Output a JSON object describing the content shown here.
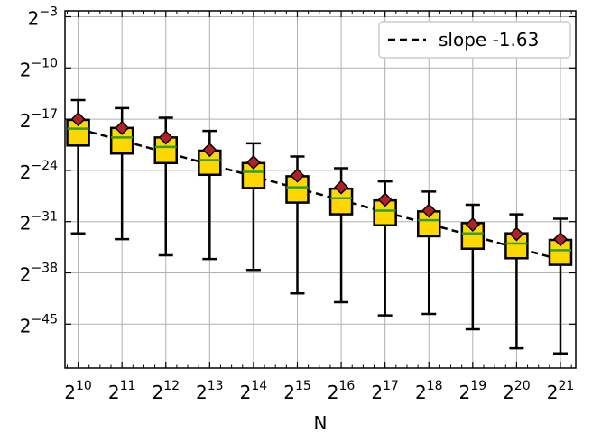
{
  "chart_data": {
    "type": "box",
    "xlabel": "N",
    "ylabel": "",
    "x_scale": "log2",
    "y_scale": "log2",
    "x_ticks": [
      {
        "base": "2",
        "exp": "10"
      },
      {
        "base": "2",
        "exp": "11"
      },
      {
        "base": "2",
        "exp": "12"
      },
      {
        "base": "2",
        "exp": "13"
      },
      {
        "base": "2",
        "exp": "14"
      },
      {
        "base": "2",
        "exp": "15"
      },
      {
        "base": "2",
        "exp": "16"
      },
      {
        "base": "2",
        "exp": "17"
      },
      {
        "base": "2",
        "exp": "18"
      },
      {
        "base": "2",
        "exp": "19"
      },
      {
        "base": "2",
        "exp": "20"
      },
      {
        "base": "2",
        "exp": "21"
      }
    ],
    "y_ticks": [
      {
        "base": "2",
        "exp": "−3"
      },
      {
        "base": "2",
        "exp": "−10"
      },
      {
        "base": "2",
        "exp": "−17"
      },
      {
        "base": "2",
        "exp": "−24"
      },
      {
        "base": "2",
        "exp": "−31"
      },
      {
        "base": "2",
        "exp": "−38"
      },
      {
        "base": "2",
        "exp": "−45"
      }
    ],
    "x_tick_values": [
      10,
      11,
      12,
      13,
      14,
      15,
      16,
      17,
      18,
      19,
      20,
      21
    ],
    "y_tick_values": [
      -3,
      -10,
      -17,
      -24,
      -31,
      -38,
      -45
    ],
    "xlim_log2": [
      9.7,
      21.35
    ],
    "ylim_log2": [
      -51.0,
      -2.2
    ],
    "grid": true,
    "legend_position": "top-right",
    "boxes": [
      {
        "x_log2": 10,
        "whisker_low": -32.6,
        "q1": -20.6,
        "median": -18.3,
        "q3": -17.1,
        "whisker_high": -14.4,
        "mean": -17.0
      },
      {
        "x_log2": 11,
        "whisker_low": -33.4,
        "q1": -21.7,
        "median": -19.5,
        "q3": -18.2,
        "whisker_high": -15.5,
        "mean": -18.2
      },
      {
        "x_log2": 12,
        "whisker_low": -35.6,
        "q1": -23.0,
        "median": -20.8,
        "q3": -19.5,
        "whisker_high": -16.8,
        "mean": -19.5
      },
      {
        "x_log2": 13,
        "whisker_low": -36.1,
        "q1": -24.6,
        "median": -22.6,
        "q3": -21.3,
        "whisker_high": -18.6,
        "mean": -21.2
      },
      {
        "x_log2": 14,
        "whisker_low": -37.6,
        "q1": -26.4,
        "median": -24.2,
        "q3": -23.0,
        "whisker_high": -20.3,
        "mean": -22.9
      },
      {
        "x_log2": 15,
        "whisker_low": -40.8,
        "q1": -28.4,
        "median": -26.3,
        "q3": -24.8,
        "whisker_high": -22.1,
        "mean": -24.7
      },
      {
        "x_log2": 16,
        "whisker_low": -42.0,
        "q1": -30.0,
        "median": -27.8,
        "q3": -26.5,
        "whisker_high": -23.7,
        "mean": -26.3
      },
      {
        "x_log2": 17,
        "whisker_low": -43.8,
        "q1": -31.5,
        "median": -29.5,
        "q3": -28.1,
        "whisker_high": -25.5,
        "mean": -28.0
      },
      {
        "x_log2": 18,
        "whisker_low": -43.6,
        "q1": -33.0,
        "median": -30.8,
        "q3": -29.6,
        "whisker_high": -26.9,
        "mean": -29.5
      },
      {
        "x_log2": 19,
        "whisker_low": -45.7,
        "q1": -34.7,
        "median": -32.6,
        "q3": -31.2,
        "whisker_high": -28.7,
        "mean": -31.4
      },
      {
        "x_log2": 20,
        "whisker_low": -48.3,
        "q1": -36.0,
        "median": -34.0,
        "q3": -32.6,
        "whisker_high": -30.0,
        "mean": -32.7
      },
      {
        "x_log2": 21,
        "whisker_low": -49.0,
        "q1": -36.9,
        "median": -34.9,
        "q3": -33.5,
        "whisker_high": -30.6,
        "mean": -33.4
      }
    ],
    "fit_line": {
      "label": "slope -1.63",
      "style": "dashed",
      "color": "#000000",
      "points": [
        [
          10,
          -18.3
        ],
        [
          21,
          -36.2
        ]
      ]
    },
    "colors": {
      "box_fill": "#FFD700",
      "box_edge": "#000000",
      "median_line": "#2ca02c",
      "mean_marker": "#B22222",
      "whisker": "#000000",
      "grid": "#b0b0b0"
    }
  }
}
